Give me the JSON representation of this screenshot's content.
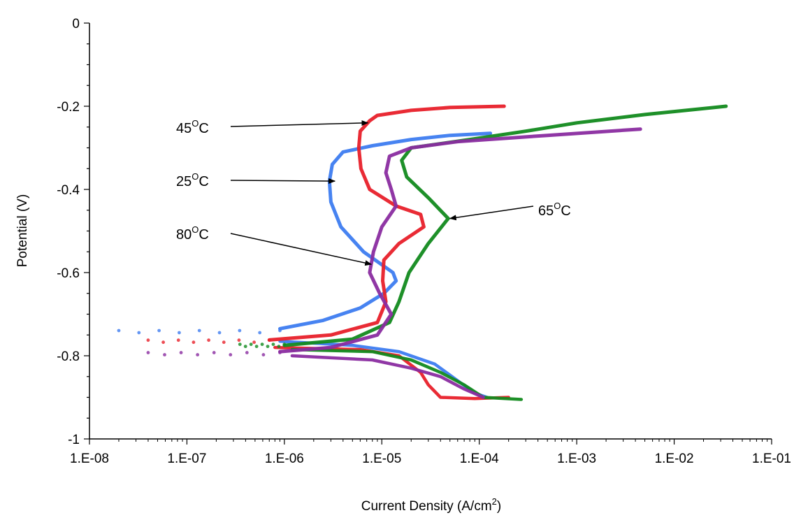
{
  "chart_data": {
    "type": "scatter",
    "title": "",
    "xlabel": "Current Density (A/cm",
    "xlabel_sup": "2",
    "xlabel_end": ")",
    "ylabel": "Potential (V)",
    "x_scale": "log",
    "xlim": [
      1e-08,
      0.1
    ],
    "ylim": [
      -1,
      0
    ],
    "x_ticks": [
      "1.E-08",
      "1.E-07",
      "1.E-06",
      "1.E-05",
      "1.E-04",
      "1.E-03",
      "1.E-02",
      "1.E-01"
    ],
    "y_ticks": [
      "0",
      "-0.2",
      "-0.4",
      "-0.6",
      "-0.8",
      "-1"
    ],
    "grid": false,
    "legend": "none",
    "series": [
      {
        "label": "25",
        "color": "#3d7cf0",
        "points": [
          [
            0.00013,
            -0.265
          ],
          [
            5e-05,
            -0.27
          ],
          [
            2e-05,
            -0.28
          ],
          [
            8e-06,
            -0.295
          ],
          [
            4e-06,
            -0.31
          ],
          [
            3.1e-06,
            -0.34
          ],
          [
            2.9e-06,
            -0.38
          ],
          [
            3e-06,
            -0.43
          ],
          [
            3.8e-06,
            -0.49
          ],
          [
            6.5e-06,
            -0.55
          ],
          [
            1.3e-05,
            -0.6
          ],
          [
            1.4e-05,
            -0.62
          ],
          [
            1.05e-05,
            -0.65
          ],
          [
            6e-06,
            -0.685
          ],
          [
            2.5e-06,
            -0.715
          ],
          [
            9e-07,
            -0.735
          ],
          [
            3e-07,
            -0.742
          ],
          [
            1e-07,
            -0.745
          ],
          [
            2e-08,
            -0.745
          ]
        ],
        "cathodic": [
          [
            9e-07,
            -0.765
          ],
          [
            5e-06,
            -0.775
          ],
          [
            1.5e-05,
            -0.79
          ],
          [
            3.5e-05,
            -0.82
          ],
          [
            6e-05,
            -0.86
          ],
          [
            9e-05,
            -0.89
          ],
          [
            0.00012,
            -0.9
          ]
        ]
      },
      {
        "label": "45",
        "color": "#e8202a",
        "points": [
          [
            0.00018,
            -0.2
          ],
          [
            5e-05,
            -0.203
          ],
          [
            2e-05,
            -0.21
          ],
          [
            9e-06,
            -0.222
          ],
          [
            7.5e-06,
            -0.235
          ],
          [
            6e-06,
            -0.26
          ],
          [
            5.8e-06,
            -0.3
          ],
          [
            6.1e-06,
            -0.35
          ],
          [
            7.5e-06,
            -0.4
          ],
          [
            1.4e-05,
            -0.44
          ],
          [
            2.5e-05,
            -0.46
          ],
          [
            2.7e-05,
            -0.49
          ],
          [
            1.5e-05,
            -0.53
          ],
          [
            1.05e-05,
            -0.57
          ],
          [
            1.02e-05,
            -0.62
          ],
          [
            1.1e-05,
            -0.67
          ],
          [
            9e-06,
            -0.72
          ],
          [
            3e-06,
            -0.75
          ],
          [
            7e-07,
            -0.762
          ],
          [
            2e-07,
            -0.765
          ],
          [
            4e-08,
            -0.765
          ]
        ],
        "cathodic": [
          [
            8e-07,
            -0.78
          ],
          [
            6e-06,
            -0.785
          ],
          [
            1.5e-05,
            -0.8
          ],
          [
            2.5e-05,
            -0.84
          ],
          [
            3e-05,
            -0.87
          ],
          [
            4e-05,
            -0.9
          ],
          [
            9e-05,
            -0.903
          ],
          [
            0.0002,
            -0.9
          ]
        ]
      },
      {
        "label": "65",
        "color": "#128a1e",
        "points": [
          [
            0.034,
            -0.2
          ],
          [
            0.005,
            -0.22
          ],
          [
            0.001,
            -0.24
          ],
          [
            0.0003,
            -0.26
          ],
          [
            8e-05,
            -0.28
          ],
          [
            2e-05,
            -0.3
          ],
          [
            1.6e-05,
            -0.33
          ],
          [
            1.8e-05,
            -0.37
          ],
          [
            3e-05,
            -0.42
          ],
          [
            4.8e-05,
            -0.47
          ],
          [
            3e-05,
            -0.53
          ],
          [
            1.9e-05,
            -0.6
          ],
          [
            1.5e-05,
            -0.67
          ],
          [
            1.2e-05,
            -0.72
          ],
          [
            5e-06,
            -0.76
          ],
          [
            1e-06,
            -0.775
          ],
          [
            3.5e-07,
            -0.775
          ]
        ],
        "cathodic": [
          [
            1.2e-06,
            -0.785
          ],
          [
            8e-06,
            -0.79
          ],
          [
            2e-05,
            -0.81
          ],
          [
            4e-05,
            -0.84
          ],
          [
            7e-05,
            -0.87
          ],
          [
            0.00011,
            -0.9
          ],
          [
            0.00027,
            -0.905
          ]
        ]
      },
      {
        "label": "80",
        "color": "#8a2ca0",
        "points": [
          [
            0.0045,
            -0.255
          ],
          [
            0.0005,
            -0.27
          ],
          [
            6e-05,
            -0.285
          ],
          [
            2e-05,
            -0.3
          ],
          [
            1.2e-05,
            -0.32
          ],
          [
            1.1e-05,
            -0.36
          ],
          [
            1.25e-05,
            -0.4
          ],
          [
            1.4e-05,
            -0.44
          ],
          [
            1e-05,
            -0.49
          ],
          [
            8.2e-06,
            -0.55
          ],
          [
            7.5e-06,
            -0.6
          ],
          [
            9.5e-06,
            -0.65
          ],
          [
            1.25e-05,
            -0.7
          ],
          [
            9e-06,
            -0.75
          ],
          [
            3e-06,
            -0.78
          ],
          [
            9e-07,
            -0.79
          ],
          [
            3e-07,
            -0.795
          ],
          [
            4e-08,
            -0.795
          ]
        ],
        "cathodic": [
          [
            1.2e-06,
            -0.8
          ],
          [
            8e-06,
            -0.81
          ],
          [
            2e-05,
            -0.83
          ],
          [
            4e-05,
            -0.85
          ],
          [
            7e-05,
            -0.88
          ],
          [
            0.00011,
            -0.9
          ]
        ]
      }
    ],
    "annotations": [
      {
        "text": "45",
        "unit_sup": "O",
        "unit": "C",
        "target": [
          7.2e-06,
          -0.24
        ]
      },
      {
        "text": "25",
        "unit_sup": "O",
        "unit": "C",
        "target": [
          3.3e-06,
          -0.38
        ]
      },
      {
        "text": "80",
        "unit_sup": "O",
        "unit": "C",
        "target": [
          7.8e-06,
          -0.58
        ]
      },
      {
        "text": "65",
        "unit_sup": "O",
        "unit": "C",
        "target": [
          5e-05,
          -0.47
        ]
      }
    ]
  }
}
